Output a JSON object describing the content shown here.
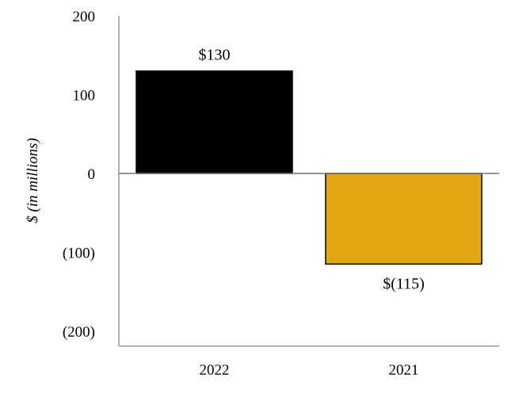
{
  "chart_data": {
    "type": "bar",
    "categories": [
      "2022",
      "2021"
    ],
    "values": [
      130,
      -115
    ],
    "data_labels": [
      "$130",
      "$(115)"
    ],
    "colors": [
      "#000000",
      "#E2A814"
    ],
    "title": "",
    "xlabel": "",
    "ylabel": "$ (in millions)",
    "ylim": [
      -200,
      200
    ],
    "yticks": [
      200,
      100,
      0,
      -100,
      -200
    ],
    "ytick_labels": [
      "200",
      "100",
      "0",
      "(100)",
      "(200)"
    ],
    "grid": false
  }
}
